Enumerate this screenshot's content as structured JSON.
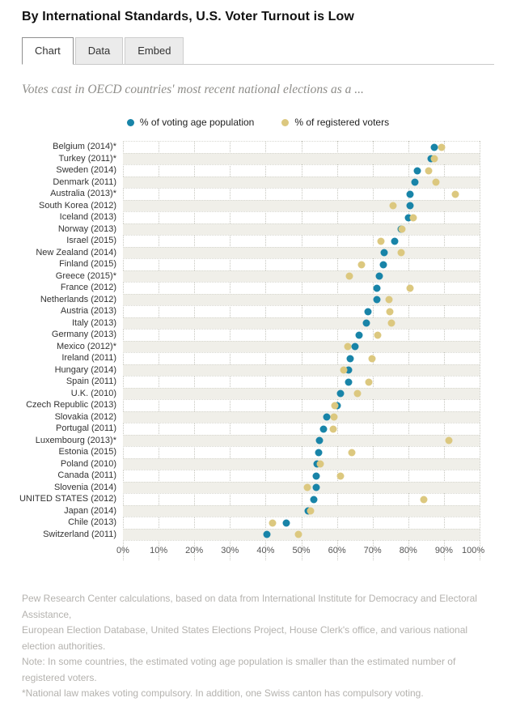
{
  "header": {
    "title": "By International Standards, U.S. Voter Turnout is Low"
  },
  "tabs": [
    {
      "label": "Chart",
      "active": true
    },
    {
      "label": "Data",
      "active": false
    },
    {
      "label": "Embed",
      "active": false
    }
  ],
  "subtitle": "Votes cast in OECD countries' most recent national elections as a ...",
  "chart_data": {
    "type": "scatter",
    "title": "By International Standards, U.S. Voter Turnout is Low",
    "xlabel": "",
    "ylabel": "",
    "xlim": [
      0,
      100
    ],
    "x_ticks": [
      "0%",
      "10%",
      "20%",
      "30%",
      "40%",
      "50%",
      "60%",
      "70%",
      "80%",
      "90%",
      "100%"
    ],
    "grid": "dotted-vertical",
    "legend_position": "top",
    "row_stripe_color": "#f0efe9",
    "categories": [
      "Belgium (2014)*",
      "Turkey (2011)*",
      "Sweden (2014)",
      "Denmark (2011)",
      "Australia (2013)*",
      "South Korea (2012)",
      "Iceland (2013)",
      "Norway (2013)",
      "Israel (2015)",
      "New Zealand (2014)",
      "Finland (2015)",
      "Greece (2015)*",
      "France (2012)",
      "Netherlands (2012)",
      "Austria (2013)",
      "Italy (2013)",
      "Germany (2013)",
      "Mexico (2012)*",
      "Ireland (2011)",
      "Hungary (2014)",
      "Spain (2011)",
      "U.K. (2010)",
      "Czech Republic (2013)",
      "Slovakia (2012)",
      "Portugal (2011)",
      "Luxembourg (2013)*",
      "Estonia (2015)",
      "Poland (2010)",
      "Canada (2011)",
      "Slovenia (2014)",
      "UNITED STATES (2012)",
      "Japan (2014)",
      "Chile (2013)",
      "Switzerland (2011)"
    ],
    "series": [
      {
        "name": "% of voting age population",
        "color": "#1884a8",
        "values": [
          87.2,
          86.4,
          82.6,
          81.8,
          80.5,
          80.4,
          80.0,
          78.0,
          76.1,
          73.2,
          73.1,
          71.9,
          71.2,
          71.1,
          68.8,
          68.3,
          66.1,
          65.0,
          63.8,
          63.3,
          63.3,
          61.1,
          60.0,
          57.1,
          56.3,
          55.1,
          54.8,
          54.5,
          54.2,
          54.1,
          53.6,
          52.0,
          45.7,
          40.4
        ]
      },
      {
        "name": "% of registered voters",
        "color": "#dcc87f",
        "values": [
          89.4,
          87.3,
          85.8,
          87.7,
          93.2,
          75.8,
          81.4,
          78.2,
          72.3,
          77.9,
          66.9,
          63.6,
          80.4,
          74.6,
          74.9,
          75.2,
          71.5,
          63.1,
          69.9,
          61.8,
          68.9,
          65.8,
          59.5,
          59.1,
          58.9,
          91.4,
          64.2,
          55.3,
          61.1,
          51.7,
          84.3,
          52.7,
          42.0,
          49.1
        ]
      }
    ]
  },
  "footer": {
    "lines": [
      "Pew Research Center calculations, based on data from International Institute for Democracy and Electoral Assistance,",
      "European Election Database, United States Elections Project, House Clerk's office, and various national election authorities.",
      "Note: In some countries, the estimated voting age population is smaller than the estimated number of registered voters.",
      "*National law makes voting compulsory. In addition, one Swiss canton has compulsory voting."
    ]
  }
}
